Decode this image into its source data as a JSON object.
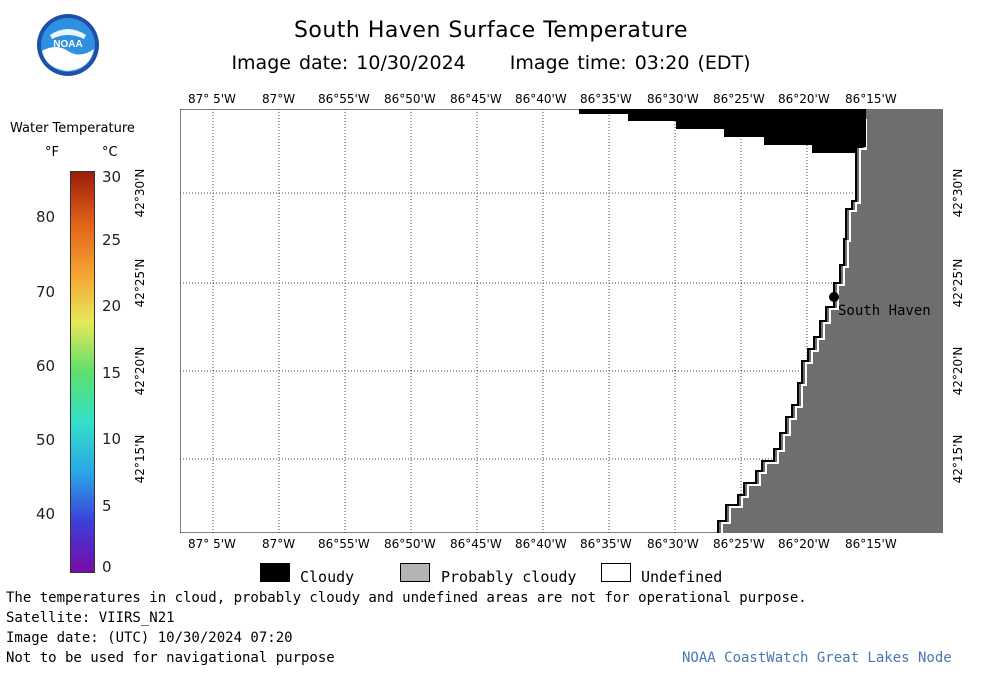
{
  "header": {
    "title": "South Haven Surface Temperature",
    "image_date": "Image date: 10/30/2024",
    "image_time": "Image time: 03:20 (EDT)",
    "logo_text": "NOAA"
  },
  "colorbar": {
    "title": "Water Temperature",
    "unit_f": "°F",
    "unit_c": "°C",
    "f_ticks": [
      "80",
      "70",
      "60",
      "50",
      "40"
    ],
    "c_ticks": [
      "30",
      "25",
      "20",
      "15",
      "10",
      "5",
      "0"
    ],
    "colors": [
      "#7a0aa8",
      "#3c3fd8",
      "#2aa7e8",
      "#33e0c8",
      "#5de06b",
      "#e8e85a",
      "#f5a030",
      "#e06018",
      "#9a1e0a"
    ]
  },
  "map": {
    "lon_labels": [
      "87° 5'W",
      "87°W",
      "86°55'W",
      "86°50'W",
      "86°45'W",
      "86°40'W",
      "86°35'W",
      "86°30'W",
      "86°25'W",
      "86°20'W",
      "86°15'W"
    ],
    "lat_labels": [
      "42°30'N",
      "42°25'N",
      "42°20'N",
      "42°15'N"
    ],
    "place_label": "South Haven",
    "land_color": "#6e6e6e",
    "cloud_color": "#000000"
  },
  "key": {
    "cloudy": "Cloudy",
    "probably_cloudy": "Probably cloudy",
    "undefined": "Undefined",
    "probably_cloudy_color": "#b4b4b4"
  },
  "footer": {
    "note": "The temperatures in cloud, probably cloudy and undefined areas are not for operational purpose.",
    "satellite": "Satellite: VIIRS_N21",
    "utc_date": "Image date: (UTC) 10/30/2024  07:20",
    "nav_warning": "Not to be used for navigational purpose",
    "credit": "NOAA CoastWatch Great Lakes Node"
  }
}
